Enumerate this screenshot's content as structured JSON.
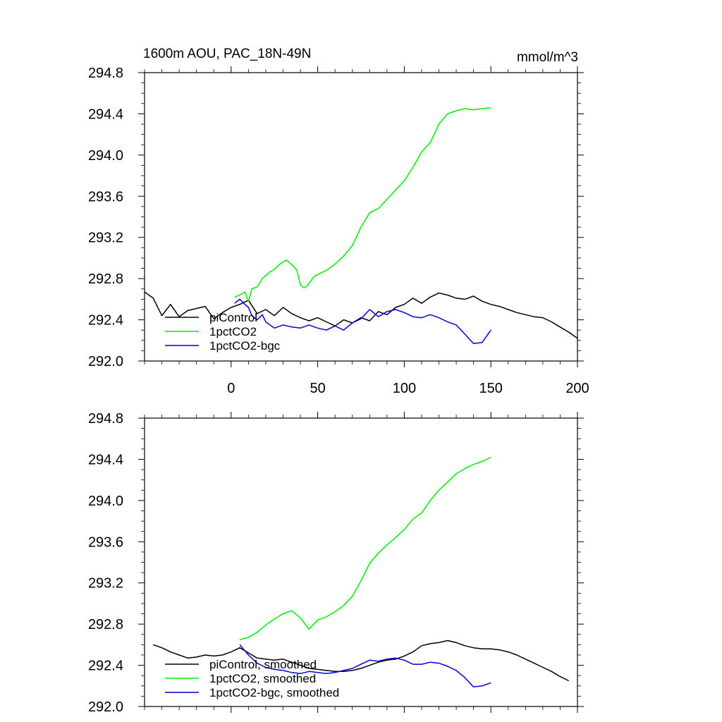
{
  "colors": {
    "piControl": "#000000",
    "1pctCO2": "#00ee00",
    "1pctCO2-bgc": "#0000dd",
    "axis": "#000000",
    "background": "#ffffff"
  },
  "chart_data": [
    {
      "type": "line",
      "title": "1600m AOU, PAC_18N-49N",
      "units": "mmol/m^3",
      "xlim": [
        -50,
        200
      ],
      "ylim": [
        292.0,
        294.8
      ],
      "xticks": [
        0,
        50,
        100,
        150,
        200
      ],
      "xtick_labels": [
        "0",
        "50",
        "100",
        "150",
        "200"
      ],
      "yticks": [
        292.0,
        292.4,
        292.8,
        293.2,
        293.6,
        294.0,
        294.4,
        294.8
      ],
      "ytick_labels": [
        "292.0",
        "292.4",
        "292.8",
        "293.2",
        "293.6",
        "294.0",
        "294.4",
        "294.8"
      ],
      "legend": [
        "piControl",
        "1pctCO2",
        "1pctCO2-bgc"
      ],
      "legend_position": "bottom-left",
      "series": [
        {
          "name": "piControl",
          "x": [
            -50,
            -45,
            -40,
            -35,
            -30,
            -25,
            -20,
            -15,
            -10,
            -5,
            0,
            5,
            10,
            15,
            20,
            25,
            30,
            35,
            40,
            45,
            50,
            55,
            60,
            65,
            70,
            75,
            80,
            85,
            90,
            95,
            100,
            105,
            110,
            115,
            120,
            125,
            130,
            135,
            140,
            145,
            150,
            155,
            160,
            165,
            170,
            175,
            180,
            185,
            190,
            195,
            200
          ],
          "y": [
            292.67,
            292.61,
            292.44,
            292.55,
            292.43,
            292.49,
            292.51,
            292.53,
            292.41,
            292.47,
            292.52,
            292.55,
            292.59,
            292.46,
            292.5,
            292.44,
            292.52,
            292.46,
            292.42,
            292.39,
            292.42,
            292.38,
            292.34,
            292.4,
            292.37,
            292.42,
            292.39,
            292.48,
            292.45,
            292.52,
            292.55,
            292.61,
            292.56,
            292.62,
            292.66,
            292.64,
            292.61,
            292.6,
            292.63,
            292.58,
            292.55,
            292.53,
            292.5,
            292.47,
            292.45,
            292.43,
            292.42,
            292.38,
            292.33,
            292.28,
            292.22
          ]
        },
        {
          "name": "1pctCO2",
          "x": [
            2,
            5,
            8,
            10,
            12,
            15,
            18,
            20,
            22,
            25,
            28,
            30,
            32,
            34,
            36,
            38,
            40,
            42,
            44,
            46,
            48,
            50,
            55,
            60,
            65,
            70,
            75,
            80,
            85,
            90,
            95,
            100,
            105,
            110,
            115,
            120,
            125,
            130,
            135,
            140,
            145,
            150
          ],
          "y": [
            292.62,
            292.64,
            292.67,
            292.58,
            292.7,
            292.72,
            292.8,
            292.83,
            292.86,
            292.89,
            292.94,
            292.96,
            292.98,
            292.95,
            292.92,
            292.88,
            292.74,
            292.71,
            292.73,
            292.78,
            292.82,
            292.84,
            292.88,
            292.94,
            293.02,
            293.12,
            293.3,
            293.44,
            293.48,
            293.57,
            293.66,
            293.75,
            293.88,
            294.03,
            294.12,
            294.3,
            294.4,
            294.43,
            294.45,
            294.44,
            294.45,
            294.46
          ]
        },
        {
          "name": "1pctCO2-bgc",
          "x": [
            2,
            5,
            8,
            10,
            12,
            15,
            18,
            20,
            25,
            30,
            35,
            40,
            45,
            50,
            55,
            60,
            65,
            70,
            75,
            80,
            85,
            90,
            95,
            100,
            105,
            110,
            115,
            120,
            125,
            130,
            135,
            140,
            145,
            150
          ],
          "y": [
            292.56,
            292.6,
            292.55,
            292.52,
            292.44,
            292.4,
            292.45,
            292.38,
            292.32,
            292.35,
            292.33,
            292.32,
            292.35,
            292.32,
            292.3,
            292.34,
            292.3,
            292.37,
            292.41,
            292.5,
            292.43,
            292.48,
            292.5,
            292.47,
            292.43,
            292.42,
            292.45,
            292.42,
            292.38,
            292.35,
            292.26,
            292.17,
            292.18,
            292.3
          ]
        }
      ]
    },
    {
      "type": "line",
      "title": "",
      "xlim": [
        -50,
        200
      ],
      "ylim": [
        292.0,
        294.8
      ],
      "xticks": [
        0,
        50,
        100,
        150,
        200
      ],
      "yticks": [
        292.0,
        292.4,
        292.8,
        293.2,
        293.6,
        294.0,
        294.4,
        294.8
      ],
      "ytick_labels": [
        "292.0",
        "292.4",
        "292.8",
        "293.2",
        "293.6",
        "294.0",
        "294.4",
        "294.8"
      ],
      "legend": [
        "piControl, smoothed",
        "1pctCO2, smoothed",
        "1pctCO2-bgc, smoothed"
      ],
      "legend_position": "bottom-left",
      "series": [
        {
          "name": "piControl, smoothed",
          "x": [
            -45,
            -40,
            -35,
            -30,
            -25,
            -20,
            -15,
            -10,
            -5,
            0,
            5,
            10,
            15,
            20,
            25,
            30,
            35,
            40,
            45,
            50,
            55,
            60,
            65,
            70,
            75,
            80,
            85,
            90,
            95,
            100,
            105,
            110,
            115,
            120,
            125,
            130,
            135,
            140,
            145,
            150,
            155,
            160,
            165,
            170,
            175,
            180,
            185,
            190,
            195
          ],
          "y": [
            292.6,
            292.57,
            292.53,
            292.5,
            292.47,
            292.48,
            292.5,
            292.49,
            292.5,
            292.53,
            292.57,
            292.52,
            292.47,
            292.46,
            292.45,
            292.46,
            292.43,
            292.4,
            292.37,
            292.36,
            292.35,
            292.34,
            292.34,
            292.35,
            292.37,
            292.4,
            292.43,
            292.45,
            292.46,
            292.49,
            292.53,
            292.59,
            292.61,
            292.62,
            292.64,
            292.62,
            292.59,
            292.57,
            292.56,
            292.56,
            292.55,
            292.53,
            292.5,
            292.46,
            292.42,
            292.38,
            292.34,
            292.29,
            292.25
          ]
        },
        {
          "name": "1pctCO2, smoothed",
          "x": [
            5,
            10,
            15,
            20,
            25,
            30,
            35,
            40,
            45,
            50,
            55,
            60,
            65,
            70,
            75,
            80,
            85,
            90,
            95,
            100,
            105,
            110,
            115,
            120,
            125,
            130,
            135,
            140,
            145,
            150
          ],
          "y": [
            292.65,
            292.67,
            292.72,
            292.79,
            292.85,
            292.9,
            292.93,
            292.86,
            292.75,
            292.84,
            292.87,
            292.92,
            292.98,
            293.07,
            293.22,
            293.39,
            293.49,
            293.57,
            293.64,
            293.72,
            293.82,
            293.88,
            294.0,
            294.1,
            294.18,
            294.26,
            294.31,
            294.35,
            294.38,
            294.42
          ]
        },
        {
          "name": "1pctCO2-bgc, smoothed",
          "x": [
            5,
            10,
            15,
            20,
            25,
            30,
            35,
            40,
            45,
            50,
            55,
            60,
            65,
            70,
            75,
            80,
            85,
            90,
            95,
            100,
            105,
            110,
            115,
            120,
            125,
            130,
            135,
            140,
            145,
            150
          ],
          "y": [
            292.6,
            292.5,
            292.42,
            292.38,
            292.36,
            292.35,
            292.33,
            292.32,
            292.34,
            292.33,
            292.32,
            292.33,
            292.35,
            292.37,
            292.41,
            292.45,
            292.44,
            292.46,
            292.47,
            292.45,
            292.41,
            292.41,
            292.43,
            292.42,
            292.39,
            292.35,
            292.28,
            292.19,
            292.2,
            292.23
          ]
        }
      ]
    }
  ]
}
